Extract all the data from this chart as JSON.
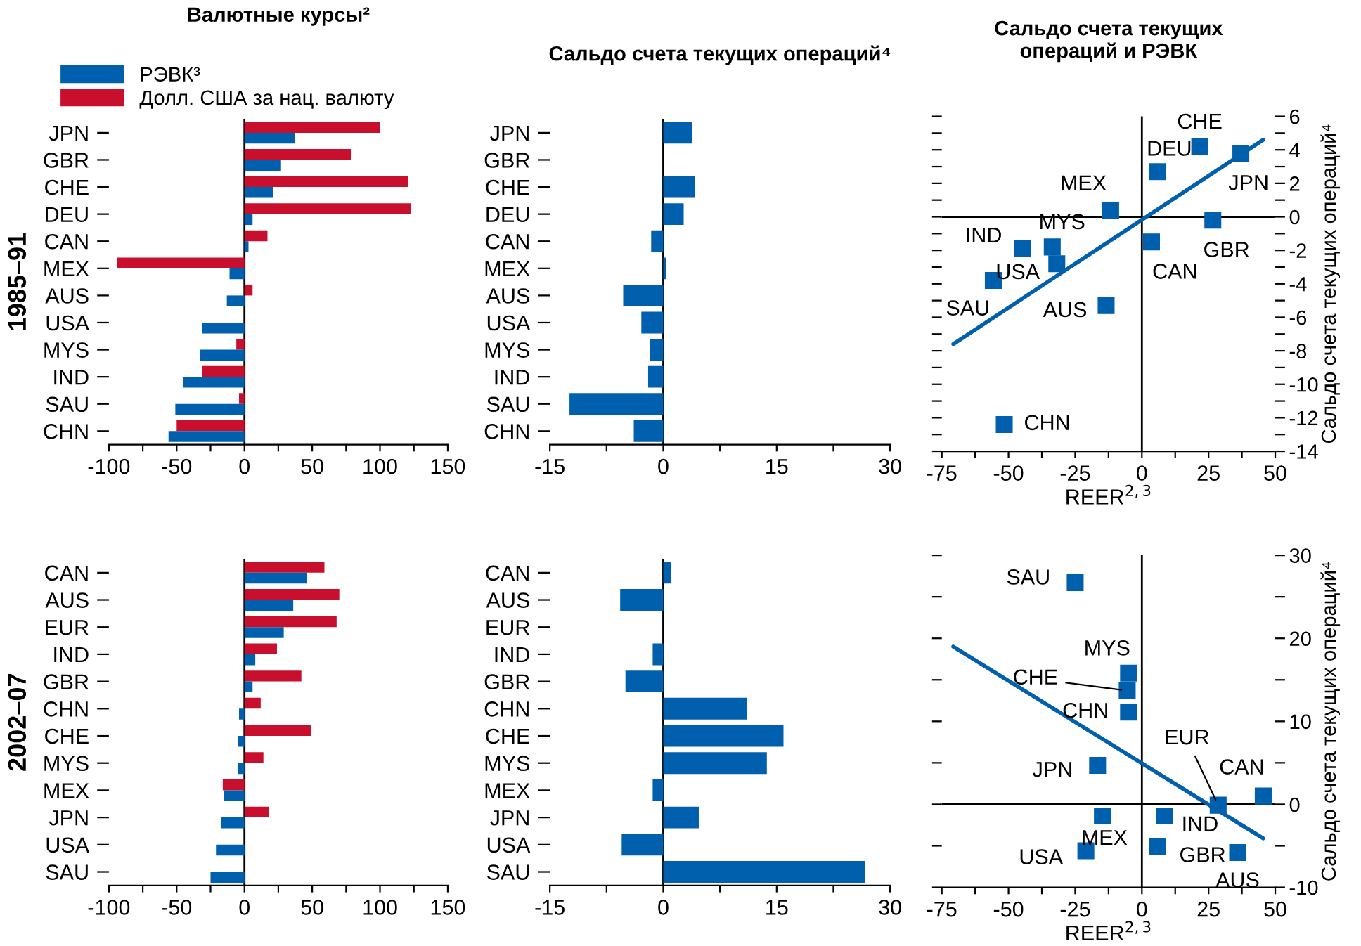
{
  "chart_data": [
    {
      "type": "bar",
      "orientation": "horizontal",
      "title": "Валютные курсы²",
      "ylabel": "1985–91",
      "legend": "top left",
      "categories": [
        "JPN",
        "GBR",
        "CHE",
        "DEU",
        "CAN",
        "MEX",
        "AUS",
        "USA",
        "MYS",
        "IND",
        "SAU",
        "CHN"
      ],
      "series": [
        {
          "name": "Долл. США за нац. валюту",
          "color": "#c8102e",
          "values": [
            100,
            79,
            121,
            123,
            17,
            -94,
            6,
            null,
            -6,
            -31,
            -4,
            -50
          ]
        },
        {
          "name": "РЭВК³",
          "color": "#0060ad",
          "values": [
            37,
            27,
            21,
            6,
            3,
            -11,
            -13,
            -31,
            -33,
            -45,
            -51,
            -56
          ]
        }
      ],
      "xlim": [
        -100,
        150
      ],
      "xticks": [
        -100,
        {
          "value": -75,
          "label": null
        },
        -50,
        {
          "value": -25,
          "label": null
        },
        0,
        {
          "value": 25,
          "label": null
        },
        50,
        {
          "value": 75,
          "label": null
        },
        100,
        {
          "value": 125,
          "label": null
        },
        150
      ],
      "ref_lines": [
        {
          "axis": "x",
          "value": 0,
          "color": "#000000"
        }
      ]
    },
    {
      "type": "bar",
      "orientation": "horizontal",
      "title": "Сальдо счета текущих операций⁴",
      "categories": [
        "JPN",
        "GBR",
        "CHE",
        "DEU",
        "CAN",
        "MEX",
        "AUS",
        "USA",
        "MYS",
        "IND",
        "SAU",
        "CHN"
      ],
      "series": [
        {
          "color": "#0060ad",
          "values": [
            3.8,
            null,
            4.2,
            2.7,
            -1.6,
            0.4,
            -5.3,
            -2.9,
            -1.8,
            -2.0,
            -12.4,
            -3.9
          ]
        }
      ],
      "xlim": [
        -15,
        30
      ],
      "xticks": [
        -15,
        {
          "value": -7.5,
          "label": null
        },
        0,
        {
          "value": 7.5,
          "label": null
        },
        15,
        {
          "value": 22.5,
          "label": null
        },
        30
      ],
      "ref_lines": [
        {
          "axis": "x",
          "value": 0,
          "color": "#000000"
        }
      ]
    },
    {
      "type": "scatter",
      "title": "Сальдо счета текущих\nопераций и РЭВК",
      "xlabel": "REER$^{2,3}$",
      "ylabel": "Сальдо счета текущих операций⁴",
      "series": [
        {
          "type": "scatter",
          "color": "#0060ad",
          "marker": "square",
          "x": [
            21.7,
            5.9,
            -11.7,
            37.1,
            26.6,
            3.6,
            -44.7,
            -33.6,
            -31.9,
            -55.7,
            -13.4,
            -51.6
          ],
          "values": [
            4.2,
            2.7,
            0.4,
            3.8,
            -0.2,
            -1.5,
            -1.9,
            -1.8,
            -2.8,
            -3.8,
            -5.3,
            -12.4
          ]
        },
        {
          "type": "line",
          "color": "#0060ad",
          "line_style": "solid",
          "x": [
            -70.7,
            45.5
          ],
          "values": [
            -7.6,
            4.6
          ]
        }
      ],
      "annotations": [
        {
          "text": "CHE",
          "x": 21.7,
          "y": 4.2
        },
        {
          "text": "DEU",
          "x": 5.9,
          "y": 2.7
        },
        {
          "text": "MEX",
          "x": -11.7,
          "y": 0.4
        },
        {
          "text": "JPN",
          "x": 37.1,
          "y": 3.8
        },
        {
          "text": "GBR",
          "x": 26.6,
          "y": -0.2
        },
        {
          "text": "CAN",
          "x": 3.6,
          "y": -1.5
        },
        {
          "text": "IND",
          "x": -44.7,
          "y": -1.9
        },
        {
          "text": "MYS",
          "x": -33.6,
          "y": -1.8
        },
        {
          "text": "USA",
          "x": -31.9,
          "y": -2.8
        },
        {
          "text": "SAU",
          "x": -55.7,
          "y": -3.8
        },
        {
          "text": "AUS",
          "x": -13.4,
          "y": -5.3
        },
        {
          "text": "CHN",
          "x": -51.6,
          "y": -12.4
        }
      ],
      "xlim": [
        -75,
        50
      ],
      "xticks": [
        -75,
        {
          "value": -62.5,
          "label": null
        },
        -50,
        {
          "value": -37.5,
          "label": null
        },
        -25,
        {
          "value": -12.5,
          "label": null
        },
        0,
        {
          "value": 12.5,
          "label": null
        },
        25,
        {
          "value": 37.5,
          "label": null
        },
        50
      ],
      "ylim": [
        -14,
        6
      ],
      "yticks": [
        -14,
        {
          "value": -13,
          "label": null
        },
        -12,
        {
          "value": -11,
          "label": null
        },
        -10,
        {
          "value": -9,
          "label": null
        },
        -8,
        {
          "value": -7,
          "label": null
        },
        -6,
        {
          "value": -5,
          "label": null
        },
        -4,
        {
          "value": -3,
          "label": null
        },
        -2,
        {
          "value": -1,
          "label": null
        },
        0,
        {
          "value": 1,
          "label": null
        },
        2,
        {
          "value": 3,
          "label": null
        },
        4,
        {
          "value": 5,
          "label": null
        },
        6
      ],
      "ref_lines": [
        {
          "axis": "x",
          "value": 0,
          "color": "#000000"
        },
        {
          "axis": "y",
          "value": 0,
          "color": "#000000"
        }
      ]
    },
    {
      "type": "bar",
      "orientation": "horizontal",
      "ylabel": "2002–07",
      "categories": [
        "CAN",
        "AUS",
        "EUR",
        "IND",
        "GBR",
        "CHN",
        "CHE",
        "MYS",
        "MEX",
        "JPN",
        "USA",
        "SAU"
      ],
      "series": [
        {
          "color": "#c8102e",
          "values": [
            59,
            70,
            68,
            24,
            42,
            12,
            49,
            14,
            -16,
            18,
            null,
            null
          ]
        },
        {
          "color": "#0060ad",
          "values": [
            46,
            36,
            29,
            8,
            6,
            -4,
            -5,
            -5,
            -15,
            -17,
            -21,
            -25
          ]
        }
      ],
      "xlim": [
        -100,
        150
      ],
      "xticks": [
        -100,
        {
          "value": -75,
          "label": null
        },
        -50,
        {
          "value": -25,
          "label": null
        },
        0,
        {
          "value": 25,
          "label": null
        },
        50,
        {
          "value": 75,
          "label": null
        },
        100,
        {
          "value": 125,
          "label": null
        },
        150
      ],
      "ref_lines": [
        {
          "axis": "x",
          "value": 0,
          "color": "#000000"
        }
      ]
    },
    {
      "type": "bar",
      "orientation": "horizontal",
      "categories": [
        "CAN",
        "AUS",
        "EUR",
        "IND",
        "GBR",
        "CHN",
        "CHE",
        "MYS",
        "MEX",
        "JPN",
        "USA",
        "SAU"
      ],
      "series": [
        {
          "color": "#0060ad",
          "values": [
            1.0,
            -5.7,
            null,
            -1.4,
            -5.0,
            11.1,
            15.9,
            13.7,
            -1.4,
            4.7,
            -5.5,
            26.7
          ]
        }
      ],
      "xlim": [
        -15,
        30
      ],
      "xticks": [
        -15,
        {
          "value": -7.5,
          "label": null
        },
        0,
        {
          "value": 7.5,
          "label": null
        },
        15,
        {
          "value": 22.5,
          "label": null
        },
        30
      ],
      "ref_lines": [
        {
          "axis": "x",
          "value": 0,
          "color": "#000000"
        }
      ]
    },
    {
      "type": "scatter",
      "xlabel": "REER$^{2,3}$",
      "ylabel": "Сальдо счета текущих операций⁴",
      "series": [
        {
          "type": "scatter",
          "color": "#0060ad",
          "marker": "square",
          "x": [
            -25,
            -5,
            -5.5,
            -5,
            -16.6,
            28.6,
            45.5,
            -14.8,
            8.6,
            -21,
            5.9,
            35.9
          ],
          "values": [
            26.7,
            15.8,
            13.7,
            11.1,
            4.7,
            -0.1,
            1.0,
            -1.4,
            -1.4,
            -5.6,
            -5.1,
            -5.8
          ]
        },
        {
          "type": "line",
          "color": "#0060ad",
          "line_style": "solid",
          "x": [
            -70.7,
            45.5
          ],
          "values": [
            19.0,
            -4.1
          ]
        }
      ],
      "annotations": [
        {
          "text": "SAU",
          "x": -25,
          "y": 26.7
        },
        {
          "text": "MYS",
          "x": -5,
          "y": 15.8
        },
        {
          "text": "CHE",
          "x": -5.5,
          "y": 13.7
        },
        {
          "text": "CHN",
          "x": -5,
          "y": 11.1
        },
        {
          "text": "JPN",
          "x": -16.6,
          "y": 4.7
        },
        {
          "text": "EUR",
          "x": 28.6,
          "y": -0.1
        },
        {
          "text": "CAN",
          "x": 45.5,
          "y": 1.0
        },
        {
          "text": "MEX",
          "x": -14.8,
          "y": -1.4
        },
        {
          "text": "IND",
          "x": 8.6,
          "y": -1.4
        },
        {
          "text": "USA",
          "x": -21,
          "y": -5.6
        },
        {
          "text": "GBR",
          "x": 5.9,
          "y": -5.1
        },
        {
          "text": "AUS",
          "x": 35.9,
          "y": -5.8
        }
      ],
      "xlim": [
        -75,
        50
      ],
      "xticks": [
        -75,
        {
          "value": -62.5,
          "label": null
        },
        -50,
        {
          "value": -37.5,
          "label": null
        },
        -25,
        {
          "value": -12.5,
          "label": null
        },
        0,
        {
          "value": 12.5,
          "label": null
        },
        25,
        {
          "value": 37.5,
          "label": null
        },
        50
      ],
      "ylim": [
        -10,
        30
      ],
      "yticks": [
        -10,
        {
          "value": -5,
          "label": null
        },
        0,
        {
          "value": 5,
          "label": null
        },
        10,
        {
          "value": 15,
          "label": null
        },
        20,
        {
          "value": 25,
          "label": null
        },
        30
      ],
      "ref_lines": [
        {
          "axis": "x",
          "value": 0,
          "color": "#000000"
        },
        {
          "axis": "y",
          "value": 0,
          "color": "#000000"
        }
      ]
    }
  ]
}
